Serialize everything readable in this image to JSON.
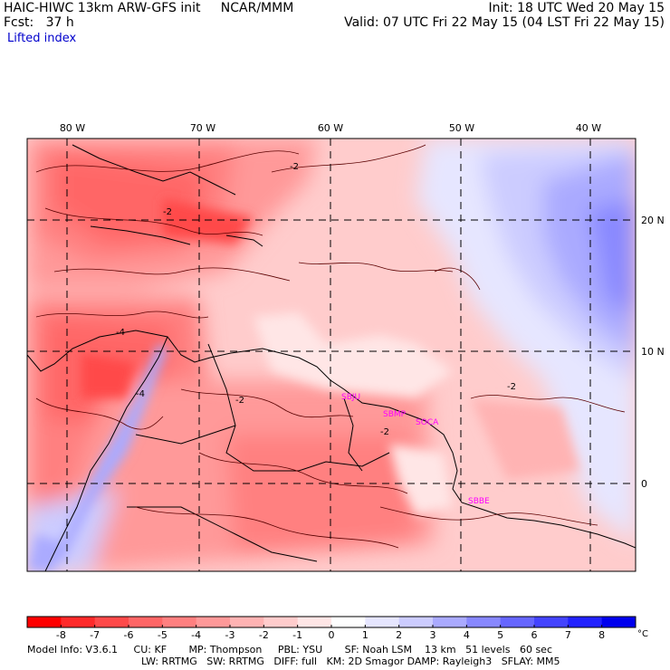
{
  "header": {
    "model": "HAIC-HIWC 13km ARW-GFS init",
    "org": "NCAR/MMM",
    "fcst_label": "Fcst:",
    "fcst_value": "37 h",
    "init": "Init: 18 UTC Wed 20 May 15",
    "valid": "Valid: 07 UTC Fri 22 May 15 (04 LST Fri 22 May 15)"
  },
  "field_name": "Lifted index",
  "map": {
    "lon_labels": [
      "80 W",
      "70 W",
      "60 W",
      "50 W",
      "40 W"
    ],
    "lat_labels": [
      "20 N",
      "10 N",
      "0"
    ],
    "stations": [
      "SBJU",
      "SBMP",
      "SOCA",
      "SBBE"
    ],
    "station_color": "#ff00ff",
    "contour_labels": [
      "-2",
      "-4",
      "-2",
      "-4",
      "-2",
      "-2",
      "-2"
    ]
  },
  "colorbar": {
    "ticks": [
      "-8",
      "-7",
      "-6",
      "-5",
      "-4",
      "-3",
      "-2",
      "-1",
      "0",
      "1",
      "2",
      "3",
      "4",
      "5",
      "6",
      "7",
      "8"
    ],
    "unit": "°C",
    "colors": [
      "#ff0000",
      "#ff2a2a",
      "#ff4a4a",
      "#ff6666",
      "#ff8080",
      "#ff9999",
      "#ffb3b3",
      "#ffcccc",
      "#ffe6e6",
      "#ffffff",
      "#e6e6ff",
      "#ccccff",
      "#aaaaff",
      "#8888ff",
      "#6666ff",
      "#4444ff",
      "#2222ff",
      "#0000ee"
    ]
  },
  "footer": {
    "line1": "Model Info: V3.6.1     CU: KF       MP: Thompson     PBL: YSU       SF: Noah LSM    13 km   51 levels   60 sec",
    "line2": "LW: RRTMG   SW: RRTMG   DIFF: full   KM: 2D Smagor DAMP: Rayleigh3   SFLAY: MM5"
  }
}
